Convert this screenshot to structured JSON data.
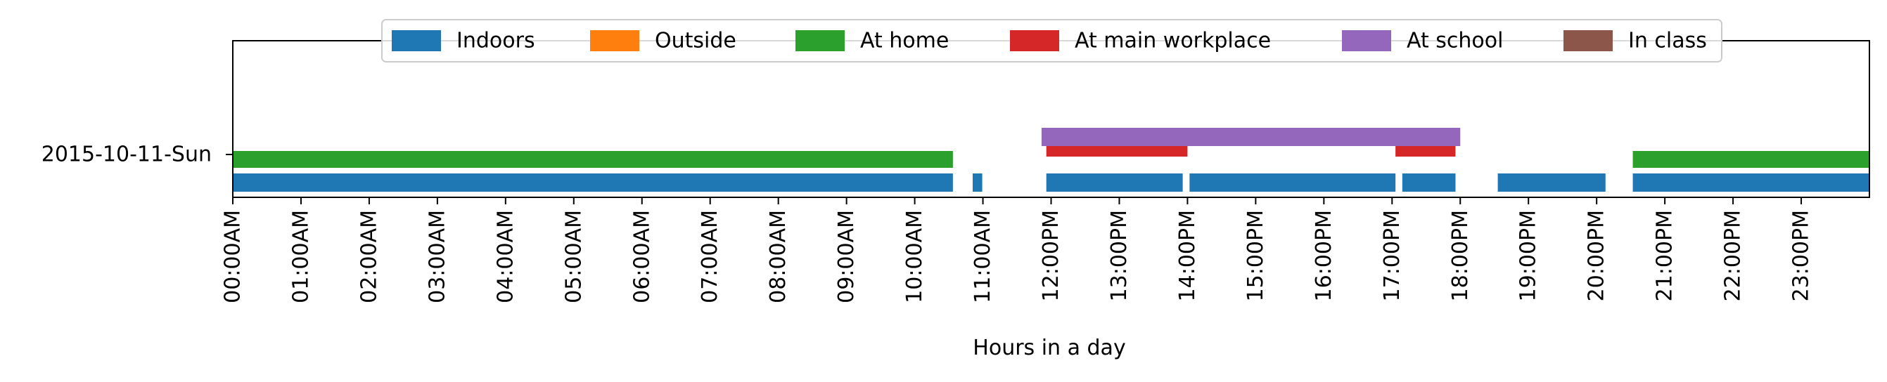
{
  "chart_data": {
    "type": "timeline",
    "xlabel": "Hours in a day",
    "xlim": [
      0,
      24
    ],
    "y_category": "2015-10-11-Sun",
    "x_ticks": [
      {
        "value": 0,
        "label": "00:00AM"
      },
      {
        "value": 1,
        "label": "01:00AM"
      },
      {
        "value": 2,
        "label": "02:00AM"
      },
      {
        "value": 3,
        "label": "03:00AM"
      },
      {
        "value": 4,
        "label": "04:00AM"
      },
      {
        "value": 5,
        "label": "05:00AM"
      },
      {
        "value": 6,
        "label": "06:00AM"
      },
      {
        "value": 7,
        "label": "07:00AM"
      },
      {
        "value": 8,
        "label": "08:00AM"
      },
      {
        "value": 9,
        "label": "09:00AM"
      },
      {
        "value": 10,
        "label": "10:00AM"
      },
      {
        "value": 11,
        "label": "11:00AM"
      },
      {
        "value": 12,
        "label": "12:00PM"
      },
      {
        "value": 13,
        "label": "13:00PM"
      },
      {
        "value": 14,
        "label": "14:00PM"
      },
      {
        "value": 15,
        "label": "15:00PM"
      },
      {
        "value": 16,
        "label": "16:00PM"
      },
      {
        "value": 17,
        "label": "17:00PM"
      },
      {
        "value": 18,
        "label": "18:00PM"
      },
      {
        "value": 19,
        "label": "19:00PM"
      },
      {
        "value": 20,
        "label": "20:00PM"
      },
      {
        "value": 21,
        "label": "21:00PM"
      },
      {
        "value": 22,
        "label": "22:00PM"
      },
      {
        "value": 23,
        "label": "23:00PM"
      }
    ],
    "legend_position": "top-center",
    "series": [
      {
        "name": "Indoors",
        "color": "#1f77b4",
        "intervals": [
          [
            0.0,
            10.56
          ],
          [
            10.85,
            10.99
          ],
          [
            11.93,
            13.93
          ],
          [
            14.03,
            17.05
          ],
          [
            17.15,
            17.93
          ],
          [
            18.55,
            20.13
          ],
          [
            20.53,
            24.0
          ]
        ]
      },
      {
        "name": "Outside",
        "color": "#ff7f0e",
        "intervals": []
      },
      {
        "name": "At home",
        "color": "#2ca02c",
        "intervals": [
          [
            0.0,
            10.56
          ],
          [
            20.53,
            24.0
          ]
        ]
      },
      {
        "name": "At main workplace",
        "color": "#d62728",
        "intervals": [
          [
            11.93,
            14.0
          ],
          [
            17.05,
            17.93
          ]
        ]
      },
      {
        "name": "At school",
        "color": "#9467bd",
        "intervals": [
          [
            11.86,
            18.0
          ]
        ]
      },
      {
        "name": "In class",
        "color": "#8c564b",
        "intervals": []
      }
    ]
  }
}
